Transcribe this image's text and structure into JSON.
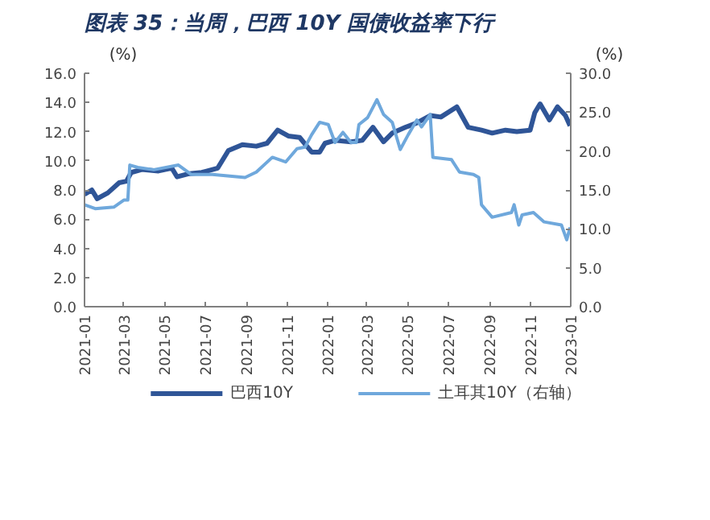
{
  "chart_data": {
    "type": "line",
    "title": "图表 35：当周，巴西 10Y 国债收益率下行",
    "ylabel": "(%)",
    "y2label": "(%)",
    "xlim": [
      "2021-01-01",
      "2023-01-01"
    ],
    "xticks": [
      "2021-01",
      "2021-03",
      "2021-05",
      "2021-07",
      "2021-09",
      "2021-11",
      "2022-01",
      "2022-03",
      "2022-05",
      "2022-07",
      "2022-09",
      "2022-11",
      "2023-01"
    ],
    "ylim": [
      0,
      16
    ],
    "yticks": [
      {
        "value": 0,
        "label": "0.0"
      },
      {
        "value": 2,
        "label": "2.0"
      },
      {
        "value": 4,
        "label": "4.0"
      },
      {
        "value": 6,
        "label": "6.0"
      },
      {
        "value": 8,
        "label": "8.0"
      },
      {
        "value": 10,
        "label": "10.0"
      },
      {
        "value": 12,
        "label": "12.0"
      },
      {
        "value": 14,
        "label": "14.0"
      },
      {
        "value": 16,
        "label": "16.0"
      }
    ],
    "y2lim": [
      0,
      30
    ],
    "y2ticks": [
      {
        "value": 0,
        "label": "0.0"
      },
      {
        "value": 5,
        "label": "5.0"
      },
      {
        "value": 10,
        "label": "10.0"
      },
      {
        "value": 15,
        "label": "15.0"
      },
      {
        "value": 20,
        "label": "20.0"
      },
      {
        "value": 25,
        "label": "25.0"
      },
      {
        "value": 30,
        "label": "30.0"
      }
    ],
    "grid": false,
    "legend": "bottom",
    "marker": "none",
    "line_style": "solid",
    "series": [
      {
        "name": "巴西10Y",
        "color": "#2f5597",
        "x": [
          "2021-01-01",
          "2021-01-12",
          "2021-01-20",
          "2021-02-05",
          "2021-02-22",
          "2021-03-05",
          "2021-03-12",
          "2021-03-28",
          "2021-04-22",
          "2021-05-12",
          "2021-05-20",
          "2021-06-05",
          "2021-06-26",
          "2021-07-20",
          "2021-08-05",
          "2021-08-26",
          "2021-09-16",
          "2021-10-02",
          "2021-10-18",
          "2021-11-03",
          "2021-11-20",
          "2021-12-08",
          "2021-12-20",
          "2021-12-28",
          "2022-01-12",
          "2022-02-05",
          "2022-02-22",
          "2022-03-10",
          "2022-03-26",
          "2022-04-08",
          "2022-04-28",
          "2022-05-15",
          "2022-06-04",
          "2022-06-20",
          "2022-07-14",
          "2022-07-31",
          "2022-08-20",
          "2022-09-05",
          "2022-09-25",
          "2022-10-12",
          "2022-11-01",
          "2022-11-08",
          "2022-11-16",
          "2022-11-30",
          "2022-12-12",
          "2022-12-24",
          "2022-12-31"
        ],
        "values": [
          7.7,
          8.0,
          7.4,
          7.8,
          8.5,
          8.6,
          9.2,
          9.4,
          9.3,
          9.5,
          8.9,
          9.1,
          9.2,
          9.5,
          10.7,
          11.1,
          11.0,
          11.2,
          12.1,
          11.7,
          11.6,
          10.6,
          10.6,
          11.2,
          11.4,
          11.3,
          11.4,
          12.3,
          11.3,
          11.9,
          12.3,
          12.6,
          13.1,
          13.0,
          13.7,
          12.3,
          12.1,
          11.9,
          12.1,
          12.0,
          12.1,
          13.3,
          13.9,
          12.8,
          13.7,
          13.1,
          12.4
        ]
      },
      {
        "name": "土耳其10Y（右轴）",
        "color": "#6fa8dc",
        "axis": "y2",
        "x": [
          "2021-01-01",
          "2021-01-17",
          "2021-02-14",
          "2021-03-01",
          "2021-03-07",
          "2021-03-10",
          "2021-03-22",
          "2021-04-15",
          "2021-05-22",
          "2021-06-10",
          "2021-07-12",
          "2021-08-30",
          "2021-09-16",
          "2021-10-10",
          "2021-10-30",
          "2021-11-16",
          "2021-11-28",
          "2021-12-08",
          "2021-12-20",
          "2022-01-02",
          "2022-01-12",
          "2022-01-24",
          "2022-02-05",
          "2022-02-13",
          "2022-02-17",
          "2022-03-02",
          "2022-03-16",
          "2022-03-26",
          "2022-04-08",
          "2022-04-20",
          "2022-05-02",
          "2022-05-15",
          "2022-05-22",
          "2022-06-04",
          "2022-06-08",
          "2022-07-06",
          "2022-07-18",
          "2022-08-08",
          "2022-08-16",
          "2022-08-20",
          "2022-09-05",
          "2022-10-04",
          "2022-10-08",
          "2022-10-15",
          "2022-10-20",
          "2022-11-06",
          "2022-11-22",
          "2022-12-18",
          "2022-12-26",
          "2022-12-31"
        ],
        "values": [
          13.1,
          12.6,
          12.8,
          13.7,
          13.7,
          18.2,
          17.9,
          17.6,
          18.2,
          17.0,
          17.0,
          16.6,
          17.3,
          19.2,
          18.6,
          20.3,
          20.5,
          22.1,
          23.7,
          23.4,
          21.1,
          22.4,
          21.1,
          21.1,
          23.4,
          24.3,
          26.6,
          24.7,
          23.7,
          20.2,
          22.1,
          24.0,
          23.1,
          24.7,
          19.2,
          18.9,
          17.3,
          17.0,
          16.6,
          13.1,
          11.5,
          12.1,
          13.1,
          10.5,
          11.8,
          12.1,
          10.9,
          10.5,
          8.6,
          10.2
        ]
      }
    ]
  }
}
